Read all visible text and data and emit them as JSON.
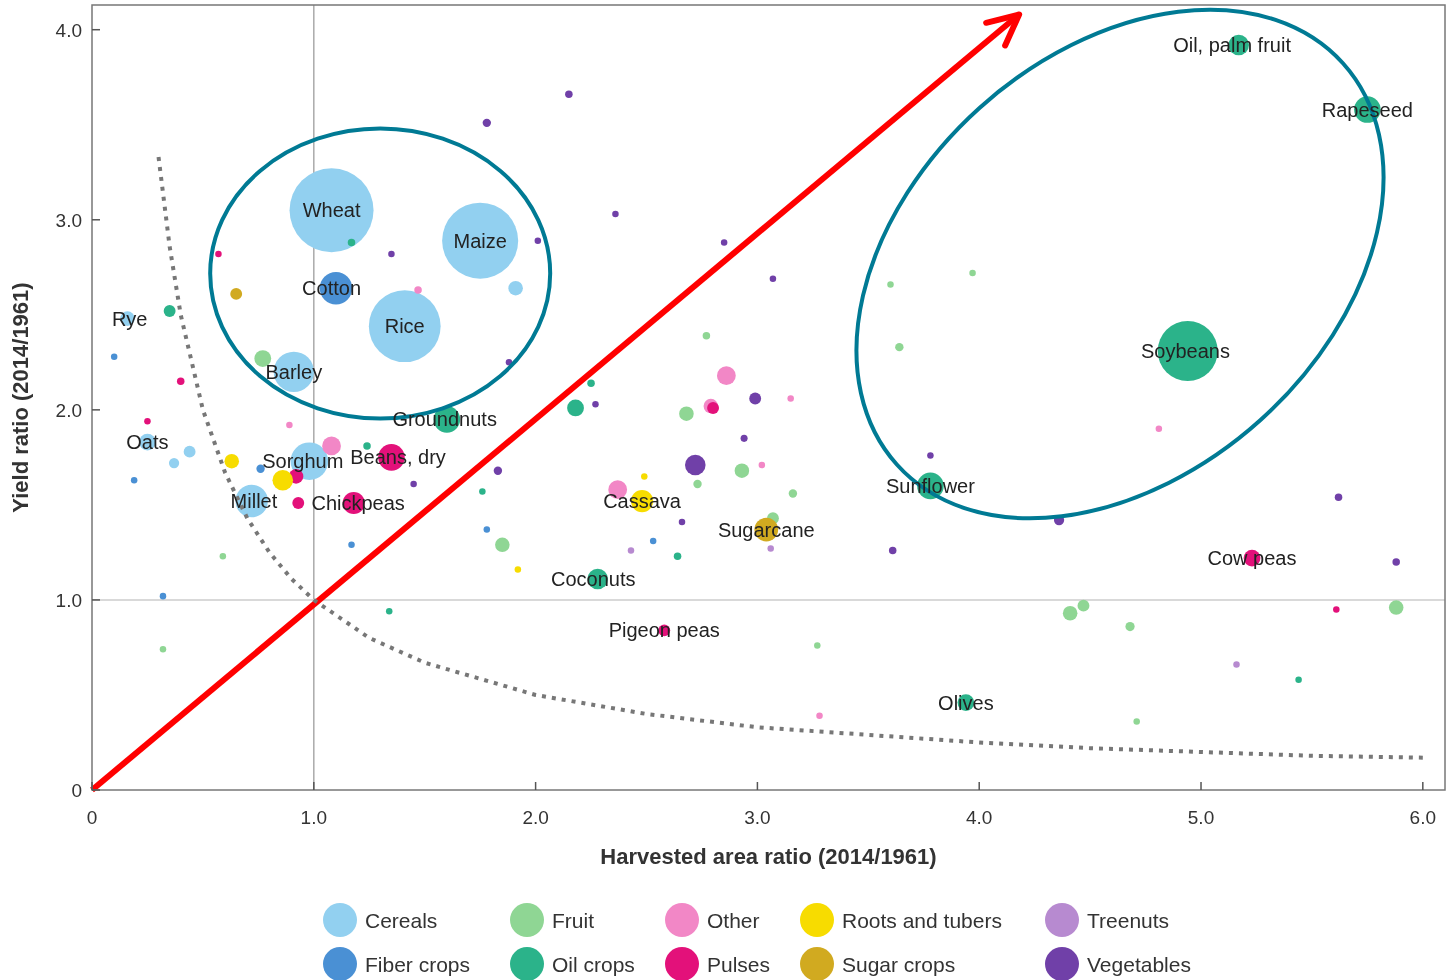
{
  "chart_data": {
    "type": "bubble",
    "xlabel": "Harvested area ratio (2014/1961)",
    "ylabel": "Yield ratio (2014/1961)",
    "xlim": [
      0,
      6.1
    ],
    "ylim": [
      0,
      4.13
    ],
    "xticks": [
      0,
      {
        "value": 1,
        "label": "1.0"
      },
      {
        "value": 2,
        "label": "2.0"
      },
      {
        "value": 3,
        "label": "3.0"
      },
      {
        "value": 4,
        "label": "4.0"
      },
      {
        "value": 5,
        "label": "5.0"
      },
      {
        "value": 6,
        "label": "6.0"
      }
    ],
    "yticks": [
      0,
      {
        "value": 1,
        "label": "1.0"
      },
      {
        "value": 2,
        "label": "2.0"
      },
      {
        "value": 3,
        "label": "3.0"
      },
      {
        "value": 4,
        "label": "4.0"
      }
    ],
    "legend": "bottom",
    "grid": false,
    "ref_lines": [
      {
        "axis": "x",
        "value": 1,
        "color": "#aaaaaa"
      },
      {
        "axis": "y",
        "value": 1,
        "color": "#cccccc"
      }
    ],
    "series": [
      {
        "name": "Cereals",
        "color": "#92d0f0",
        "x": [
          1.08,
          1.75,
          1.41,
          0.91,
          0.98,
          0.72,
          0.25,
          0.16,
          1.91,
          0.44,
          0.37
        ],
        "values": [
          3.05,
          2.89,
          2.44,
          2.2,
          1.73,
          1.52,
          1.83,
          2.48,
          2.64,
          1.78,
          1.72
        ],
        "sizes": [
          1,
          0.82,
          0.73,
          0.23,
          0.2,
          0.15,
          0.04,
          0.03,
          0.03,
          0.02,
          0.015
        ]
      },
      {
        "name": "Fiber crops",
        "color": "#4a90d4",
        "x": [
          1.1,
          0.19,
          0.32,
          0.76,
          1.17,
          1.78,
          2.53,
          0.1
        ],
        "values": [
          2.64,
          1.63,
          1.02,
          1.69,
          1.29,
          1.37,
          1.31,
          2.28
        ],
        "sizes": [
          0.15,
          0.006,
          0.006,
          0.01,
          0.006,
          0.006,
          0.006,
          0.006
        ]
      },
      {
        "name": "Fruit",
        "color": "#8fd694",
        "x": [
          0.77,
          1.85,
          2.68,
          2.93,
          2.77,
          4.41,
          4.47,
          4.68,
          5.88,
          3.64,
          3.6,
          3.97,
          3.16,
          3.07,
          2.73,
          4.71,
          0.59,
          0.32,
          3.27
        ],
        "values": [
          2.27,
          1.29,
          1.98,
          1.68,
          2.39,
          0.93,
          0.97,
          0.86,
          0.96,
          2.33,
          2.66,
          2.72,
          1.56,
          1.43,
          1.61,
          0.36,
          1.23,
          0.74,
          0.76
        ],
        "sizes": [
          0.04,
          0.03,
          0.03,
          0.03,
          0.008,
          0.03,
          0.02,
          0.012,
          0.03,
          0.01,
          0.006,
          0.006,
          0.01,
          0.02,
          0.01,
          0.006,
          0.006,
          0.006,
          0.006
        ]
      },
      {
        "name": "Oil crops",
        "color": "#2bb38a",
        "x": [
          4.94,
          5.75,
          5.17,
          3.78,
          1.6,
          2.28,
          3.94,
          2.18,
          0.35,
          1.17,
          2.25,
          1.76,
          2.64,
          1.34,
          5.44,
          1.24
        ],
        "values": [
          2.31,
          3.58,
          3.92,
          1.6,
          1.95,
          1.11,
          0.46,
          2.01,
          2.52,
          2.88,
          2.14,
          1.57,
          1.23,
          0.94,
          0.58,
          1.81
        ],
        "sizes": [
          0.51,
          0.1,
          0.06,
          0.1,
          0.1,
          0.06,
          0.04,
          0.04,
          0.02,
          0.008,
          0.008,
          0.006,
          0.008,
          0.006,
          0.006,
          0.008
        ]
      },
      {
        "name": "Other",
        "color": "#f287c6",
        "x": [
          2.86,
          2.37,
          1.08,
          1.47,
          2.79,
          3.02,
          3.15,
          4.81,
          3.28,
          0.89
        ],
        "values": [
          2.18,
          1.58,
          1.81,
          2.63,
          2.02,
          1.71,
          2.06,
          1.9,
          0.39,
          1.92
        ],
        "sizes": [
          0.05,
          0.05,
          0.05,
          0.008,
          0.03,
          0.006,
          0.006,
          0.006,
          0.006,
          0.006
        ]
      },
      {
        "name": "Pulses",
        "color": "#e3117a",
        "x": [
          1.35,
          1.18,
          5.23,
          2.58,
          0.93,
          0.92,
          0.4,
          0.25,
          0.57,
          2.8,
          5.61
        ],
        "values": [
          1.75,
          1.51,
          1.22,
          0.84,
          1.51,
          1.65,
          2.15,
          1.94,
          2.82,
          2.01,
          0.95
        ],
        "sizes": [
          0.1,
          0.07,
          0.04,
          0.02,
          0.02,
          0.03,
          0.008,
          0.006,
          0.006,
          0.02,
          0.006
        ]
      },
      {
        "name": "Roots and tubers",
        "color": "#f7dc00",
        "x": [
          2.48,
          0.63,
          0.86,
          2.49,
          1.92
        ],
        "values": [
          1.52,
          1.73,
          1.63,
          1.65,
          1.16
        ],
        "sizes": [
          0.07,
          0.03,
          0.06,
          0.006,
          0.006
        ]
      },
      {
        "name": "Sugar crops",
        "color": "#d1aa20",
        "x": [
          3.04,
          0.65
        ],
        "values": [
          1.37,
          2.61
        ],
        "sizes": [
          0.08,
          0.02
        ]
      },
      {
        "name": "Treenuts",
        "color": "#b78ad0",
        "x": [
          3.06,
          5.16,
          2.43
        ],
        "values": [
          1.27,
          0.66,
          1.26
        ],
        "sizes": [
          0.006,
          0.006,
          0.006
        ]
      },
      {
        "name": "Vegetables",
        "color": "#7040a8",
        "x": [
          2.72,
          2.15,
          1.78,
          2.36,
          1.35,
          2.01,
          2.85,
          3.07,
          2.99,
          2.94,
          2.27,
          1.83,
          2.66,
          3.61,
          3.78,
          4.36,
          5.62,
          5.88,
          1.45,
          1.88
        ],
        "values": [
          1.71,
          3.66,
          3.51,
          3.03,
          2.82,
          2.89,
          2.88,
          2.69,
          2.06,
          1.85,
          2.03,
          1.68,
          1.41,
          1.26,
          1.76,
          1.42,
          1.54,
          1.2,
          1.61,
          2.25
        ],
        "sizes": [
          0.06,
          0.008,
          0.01,
          0.006,
          0.006,
          0.006,
          0.006,
          0.006,
          0.02,
          0.007,
          0.006,
          0.01,
          0.006,
          0.008,
          0.006,
          0.015,
          0.008,
          0.008,
          0.006,
          0.006
        ]
      },
      {
        "type": "line",
        "color": "#ff0000",
        "x": [
          0,
          4.18
        ],
        "values": [
          0,
          4.08
        ]
      },
      {
        "type": "line",
        "color": "#777777",
        "line_style": "dotted",
        "x": [
          0.3,
          0.35,
          0.4,
          0.5,
          0.6,
          0.7,
          0.8,
          0.9,
          1,
          1.25,
          1.5,
          2,
          2.5,
          3,
          3.5,
          4,
          4.5,
          5,
          5.5,
          6
        ],
        "values": [
          3.33,
          2.86,
          2.5,
          2,
          1.67,
          1.43,
          1.25,
          1.11,
          1,
          0.8,
          0.67,
          0.5,
          0.4,
          0.33,
          0.29,
          0.25,
          0.22,
          0.2,
          0.18,
          0.17
        ]
      }
    ],
    "annotations": [
      {
        "text": "Wheat",
        "x": 1.08,
        "y": 3.05
      },
      {
        "text": "Maize",
        "x": 1.75,
        "y": 2.89
      },
      {
        "text": "Rice",
        "x": 1.41,
        "y": 2.44
      },
      {
        "text": "Cotton",
        "x": 1.08,
        "y": 2.64
      },
      {
        "text": "Barley",
        "x": 0.91,
        "y": 2.2
      },
      {
        "text": "Rye",
        "x": 0.17,
        "y": 2.48
      },
      {
        "text": "Oats",
        "x": 0.25,
        "y": 1.83
      },
      {
        "text": "Sorghum",
        "x": 0.98,
        "y": 1.73
      },
      {
        "text": "Beans, dry",
        "x": 1.35,
        "y": 1.75
      },
      {
        "text": "Millet",
        "x": 0.73,
        "y": 1.52
      },
      {
        "text": "Chickpeas",
        "x": 1.2,
        "y": 1.51
      },
      {
        "text": "Groundnuts",
        "x": 1.59,
        "y": 1.95
      },
      {
        "text": "Cassava",
        "x": 2.48,
        "y": 1.52
      },
      {
        "text": "Sugarcane",
        "x": 3.04,
        "y": 1.37
      },
      {
        "text": "Coconuts",
        "x": 2.26,
        "y": 1.11
      },
      {
        "text": "Pigeon peas",
        "x": 2.58,
        "y": 0.84
      },
      {
        "text": "Sunflower",
        "x": 3.78,
        "y": 1.6
      },
      {
        "text": "Olives",
        "x": 3.94,
        "y": 0.46
      },
      {
        "text": "Soybeans",
        "x": 4.93,
        "y": 2.31
      },
      {
        "text": "Oil, palm fruit",
        "x": 5.14,
        "y": 3.92
      },
      {
        "text": "Rapeseed",
        "x": 5.75,
        "y": 3.58
      },
      {
        "text": "Cow peas",
        "x": 5.23,
        "y": 1.22
      }
    ]
  }
}
